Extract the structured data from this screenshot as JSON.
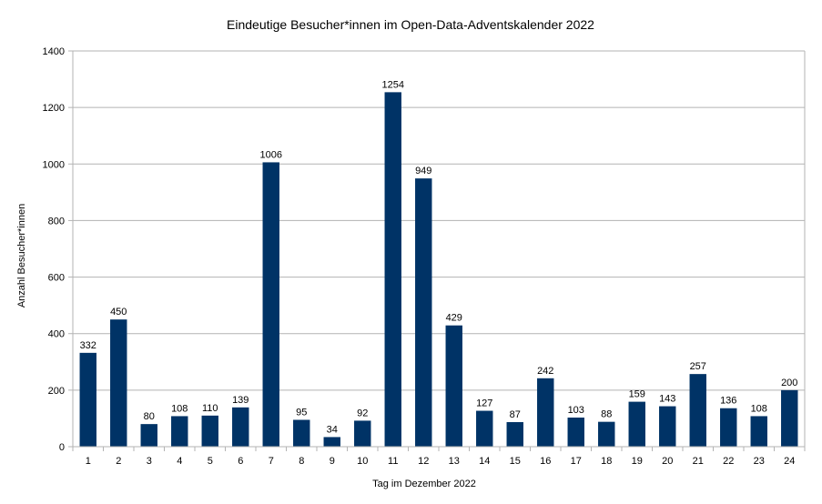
{
  "chart_data": {
    "type": "bar",
    "title": "Eindeutige Besucher*innen im Open-Data-Adventskalender 2022",
    "xlabel": "Tag im Dezember 2022",
    "ylabel": "Anzahl Besucher*innen",
    "ylim": [
      0,
      1400
    ],
    "yticks": [
      "0",
      "200",
      "400",
      "600",
      "800",
      "1000",
      "1200",
      "1400"
    ],
    "categories": [
      "1",
      "2",
      "3",
      "4",
      "5",
      "6",
      "7",
      "8",
      "9",
      "10",
      "11",
      "12",
      "13",
      "14",
      "15",
      "16",
      "17",
      "18",
      "19",
      "20",
      "21",
      "22",
      "23",
      "24"
    ],
    "values": [
      332,
      450,
      80,
      108,
      110,
      139,
      1006,
      95,
      34,
      92,
      1254,
      949,
      429,
      127,
      87,
      242,
      103,
      88,
      159,
      143,
      257,
      136,
      108,
      200
    ],
    "bar_color": "#003366",
    "grid": true,
    "legend": "none"
  }
}
